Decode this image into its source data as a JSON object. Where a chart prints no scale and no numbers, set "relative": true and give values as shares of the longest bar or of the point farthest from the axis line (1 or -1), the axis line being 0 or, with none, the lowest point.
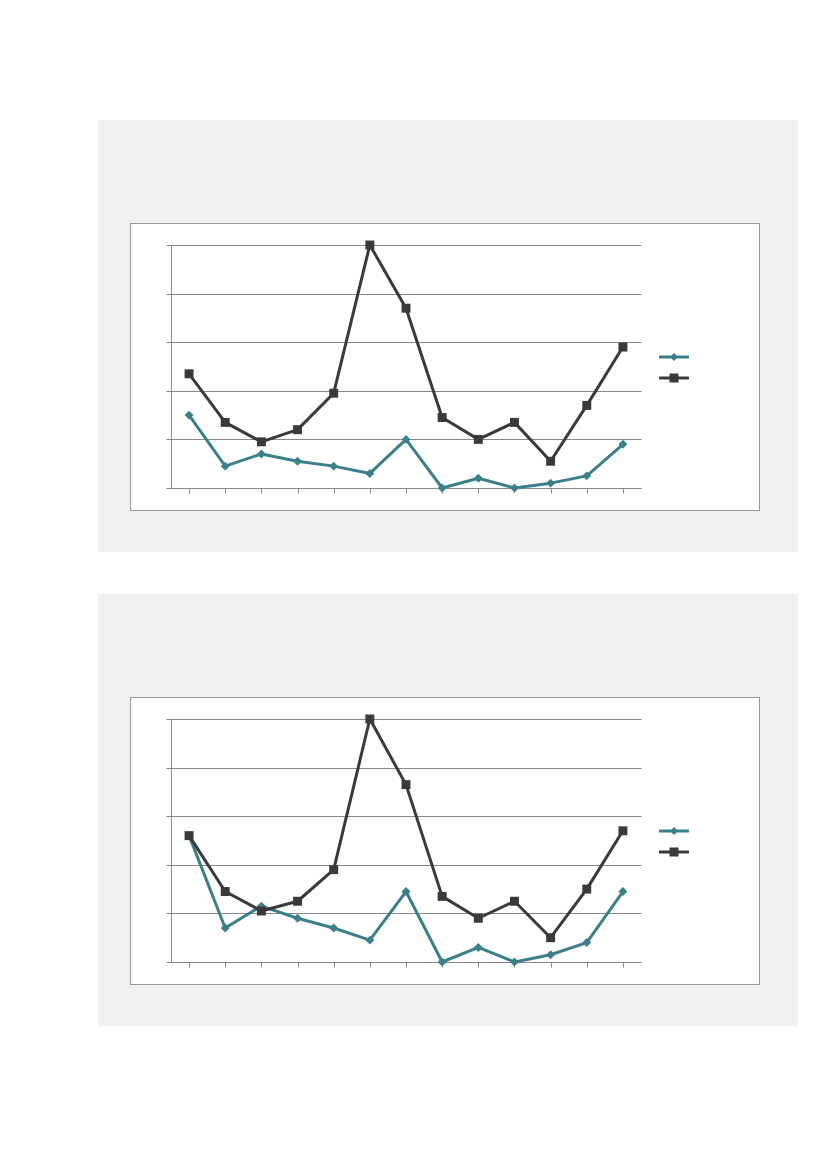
{
  "chart_data": [
    {
      "type": "line",
      "relative": true,
      "grid": "y",
      "categories": [
        null,
        null,
        null,
        null,
        null,
        null,
        null,
        null,
        null,
        null,
        null,
        null,
        null
      ],
      "series": [
        {
          "color": "#3a7f8a",
          "marker": "diamond",
          "values": [
            0.3,
            0.09,
            0.14,
            0.11,
            0.09,
            0.06,
            0.2,
            0,
            0.04,
            0,
            0.02,
            0.05,
            0.18
          ]
        },
        {
          "color": "#3a3a3a",
          "marker": "square",
          "values": [
            0.47,
            0.27,
            0.19,
            0.24,
            0.39,
            1,
            0.74,
            0.29,
            0.2,
            0.27,
            0.11,
            0.34,
            0.58
          ]
        }
      ]
    },
    {
      "type": "line",
      "relative": true,
      "grid": "y",
      "categories": [
        null,
        null,
        null,
        null,
        null,
        null,
        null,
        null,
        null,
        null,
        null,
        null,
        null
      ],
      "series": [
        {
          "color": "#3a7f8a",
          "marker": "diamond",
          "values": [
            0.52,
            0.14,
            0.23,
            0.18,
            0.14,
            0.09,
            0.29,
            0,
            0.06,
            0,
            0.03,
            0.08,
            0.29
          ]
        },
        {
          "color": "#3a3a3a",
          "marker": "square",
          "values": [
            0.52,
            0.29,
            0.21,
            0.25,
            0.38,
            1,
            0.73,
            0.27,
            0.18,
            0.25,
            0.1,
            0.3,
            0.54
          ]
        }
      ]
    }
  ]
}
